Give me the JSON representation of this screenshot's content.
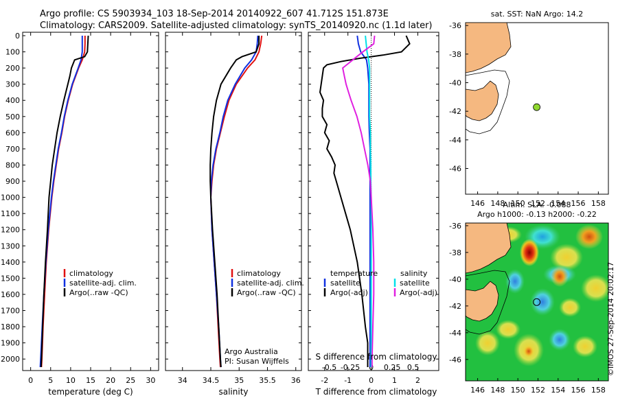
{
  "header": {
    "line1": "Argo profile: CS 5903934_103 18-Sep-2014 20140922_607 41.712S 151.873E",
    "line2": "Climatology: CARS2009. Satellite-adjusted climatology: synTS_20140920.nc (1.1d later)"
  },
  "colors": {
    "climatology": "#e01010",
    "satellite": "#1030e0",
    "argo": "#000000",
    "satellite_s": "#00e0e8",
    "argo_s": "#e020e0",
    "land": "#f5b880",
    "map_green": "#22c040"
  },
  "chart_data": [
    {
      "type": "line",
      "panel": "temperature",
      "xlabel": "temperature (deg C)",
      "xlim": [
        -2,
        32
      ],
      "xticks": [
        0,
        5,
        10,
        15,
        20,
        25,
        30
      ],
      "ylim": [
        2050,
        0
      ],
      "yticks": [
        0,
        100,
        200,
        300,
        400,
        500,
        600,
        700,
        800,
        900,
        1000,
        1100,
        1200,
        1300,
        1400,
        1500,
        1600,
        1700,
        1800,
        1900,
        2000
      ],
      "legend": [
        "climatology",
        "satellite-adj. clim.",
        "Argo(..raw -QC)"
      ],
      "series": [
        {
          "name": "climatology",
          "depth": [
            0,
            50,
            100,
            150,
            200,
            300,
            400,
            500,
            600,
            700,
            800,
            900,
            1000,
            1200,
            1400,
            1600,
            1800,
            2000,
            2050
          ],
          "values": [
            13.6,
            13.6,
            13.5,
            12.9,
            12.0,
            10.5,
            9.4,
            8.5,
            7.8,
            7.0,
            6.4,
            5.8,
            5.3,
            4.5,
            3.9,
            3.5,
            3.1,
            2.8,
            2.7
          ]
        },
        {
          "name": "satellite-adj. clim.",
          "depth": [
            0,
            50,
            100,
            150,
            200,
            300,
            400,
            500,
            600,
            700,
            800,
            900,
            1000,
            1200,
            1400,
            1600,
            1800,
            2000,
            2050
          ],
          "values": [
            12.9,
            12.9,
            12.9,
            12.6,
            11.9,
            10.4,
            9.3,
            8.4,
            7.7,
            6.9,
            6.3,
            5.7,
            5.2,
            4.4,
            3.8,
            3.3,
            2.9,
            2.5,
            2.4
          ]
        },
        {
          "name": "Argo(..raw -QC)",
          "depth": [
            0,
            50,
            100,
            130,
            150,
            200,
            250,
            300,
            400,
            500,
            600,
            700,
            800,
            900,
            1000,
            1200,
            1400,
            1600,
            1800,
            2000,
            2050
          ],
          "values": [
            14.4,
            14.3,
            14.2,
            13.5,
            11.0,
            10.2,
            9.8,
            9.3,
            8.3,
            7.4,
            6.6,
            6.0,
            5.4,
            5.0,
            4.6,
            4.2,
            3.7,
            3.3,
            3.0,
            2.7,
            2.6
          ]
        }
      ]
    },
    {
      "type": "line",
      "panel": "salinity",
      "xlabel": "salinity",
      "xlim": [
        33.7,
        36.1
      ],
      "xticks": [
        34,
        34.5,
        35,
        35.5,
        36
      ],
      "ylim": [
        2050,
        0
      ],
      "legend": [
        "climatology",
        "satellite-adj. clim.",
        "Argo(..raw -QC)"
      ],
      "annotation": [
        "Argo Australia",
        "PI: Susan Wijffels"
      ],
      "series": [
        {
          "name": "climatology",
          "depth": [
            0,
            50,
            100,
            150,
            200,
            300,
            400,
            500,
            600,
            700,
            800,
            900,
            1000,
            1200,
            1400,
            1600,
            1800,
            2000,
            2050
          ],
          "values": [
            35.4,
            35.38,
            35.35,
            35.28,
            35.15,
            34.95,
            34.82,
            34.74,
            34.67,
            34.6,
            34.55,
            34.52,
            34.5,
            34.52,
            34.56,
            34.6,
            34.63,
            34.66,
            34.67
          ]
        },
        {
          "name": "satellite-adj. clim.",
          "depth": [
            0,
            50,
            100,
            150,
            200,
            300,
            400,
            500,
            600,
            700,
            800,
            900,
            1000,
            1200,
            1400,
            1600,
            1800,
            2000,
            2050
          ],
          "values": [
            35.33,
            35.32,
            35.3,
            35.22,
            35.1,
            34.93,
            34.8,
            34.72,
            34.66,
            34.59,
            34.54,
            34.51,
            34.5,
            34.52,
            34.56,
            34.6,
            34.64,
            34.67,
            34.68
          ]
        },
        {
          "name": "Argo(..raw -QC)",
          "depth": [
            0,
            50,
            100,
            130,
            150,
            200,
            300,
            400,
            500,
            600,
            700,
            800,
            900,
            1000,
            1200,
            1400,
            1600,
            1800,
            2000,
            2050
          ],
          "values": [
            35.35,
            35.35,
            35.3,
            35.05,
            34.95,
            34.85,
            34.68,
            34.6,
            34.55,
            34.52,
            34.5,
            34.49,
            34.49,
            34.5,
            34.53,
            34.57,
            34.61,
            34.64,
            34.67,
            34.68
          ]
        }
      ]
    },
    {
      "type": "line",
      "panel": "difference",
      "xlabel": "T difference from climatology",
      "xlabel_top": "S difference from climatology",
      "xlim": [
        -2.7,
        2.9
      ],
      "xticks": [
        -2,
        -1,
        0,
        1,
        2
      ],
      "xticks_s": [
        "-0.5",
        "-0.25",
        "0",
        "0.25",
        "0.5"
      ],
      "ylim": [
        2050,
        0
      ],
      "legend": {
        "temperature_header": "temperature",
        "salinity_header": "salinity",
        "satellite": "satellite",
        "argo": "Argo(-adj)"
      },
      "series": [
        {
          "name": "T satellite",
          "depth": [
            0,
            50,
            100,
            150,
            200,
            300,
            400,
            500,
            600,
            700,
            800,
            900,
            1000,
            1200,
            1400,
            1600,
            1800,
            2000,
            2050
          ],
          "values": [
            -0.6,
            -0.55,
            -0.45,
            -0.2,
            -0.15,
            -0.1,
            -0.1,
            -0.1,
            -0.08,
            -0.05,
            -0.05,
            -0.05,
            -0.05,
            -0.05,
            -0.05,
            -0.05,
            -0.05,
            -0.05,
            -0.05
          ]
        },
        {
          "name": "T Argo(-adj)",
          "depth": [
            0,
            50,
            100,
            120,
            140,
            160,
            180,
            200,
            250,
            300,
            350,
            400,
            450,
            500,
            550,
            600,
            650,
            700,
            750,
            800,
            850,
            900,
            1000,
            1100,
            1200,
            1400,
            1600,
            1800,
            1900,
            2000,
            2050
          ],
          "values": [
            1.5,
            1.65,
            1.3,
            0.5,
            -0.5,
            -1.3,
            -1.9,
            -2.05,
            -2.1,
            -2.15,
            -2.2,
            -2.05,
            -2.1,
            -2.1,
            -1.9,
            -2.0,
            -1.8,
            -1.9,
            -1.7,
            -1.55,
            -1.6,
            -1.5,
            -1.3,
            -1.1,
            -0.9,
            -0.6,
            -0.4,
            -0.25,
            -0.15,
            -0.15,
            -0.15
          ]
        },
        {
          "name": "S satellite",
          "depth": [
            0,
            50,
            100,
            150,
            200,
            300,
            400,
            500,
            600,
            700,
            800,
            900,
            1000,
            1200,
            1400,
            1600,
            1800,
            2000,
            2050
          ],
          "values": [
            -0.07,
            -0.06,
            -0.05,
            -0.03,
            -0.02,
            -0.02,
            -0.02,
            -0.02,
            -0.01,
            -0.01,
            -0.005,
            -0.005,
            0,
            0,
            0,
            0,
            0,
            0,
            0
          ]
        },
        {
          "name": "S Argo(-adj)",
          "depth": [
            0,
            50,
            100,
            150,
            200,
            250,
            300,
            350,
            400,
            500,
            600,
            700,
            800,
            900,
            1000,
            1200,
            1400,
            1600,
            1800,
            2000,
            2050
          ],
          "values": [
            0.04,
            0.03,
            -0.1,
            -0.22,
            -0.34,
            -0.32,
            -0.3,
            -0.27,
            -0.24,
            -0.17,
            -0.12,
            -0.08,
            -0.04,
            -0.01,
            0,
            0.02,
            0.03,
            0.03,
            0.02,
            0.01,
            0.01
          ]
        }
      ]
    }
  ],
  "map_sst": {
    "title": "sat. SST: NaN Argo: 14.2",
    "xticks": [
      "146",
      "148",
      "150",
      "152",
      "154",
      "156",
      "158"
    ],
    "yticks": [
      "-36",
      "-38",
      "-40",
      "-42",
      "-44",
      "-46"
    ],
    "argo_lon": 151.873,
    "argo_lat": -41.712
  },
  "map_sla": {
    "title_line1": "Altim. SLA: -0.088",
    "title_line2": "Argo h1000: -0.13 h2000: -0.22",
    "xticks": [
      "146",
      "148",
      "150",
      "152",
      "154",
      "156",
      "158"
    ],
    "yticks": [
      "-36",
      "-38",
      "-40",
      "-42",
      "-44",
      "-46"
    ],
    "argo_lon": 151.873,
    "argo_lat": -41.712
  },
  "footer": {
    "side_label": "©IMOS 27-Sep-2014 20:02:17"
  }
}
